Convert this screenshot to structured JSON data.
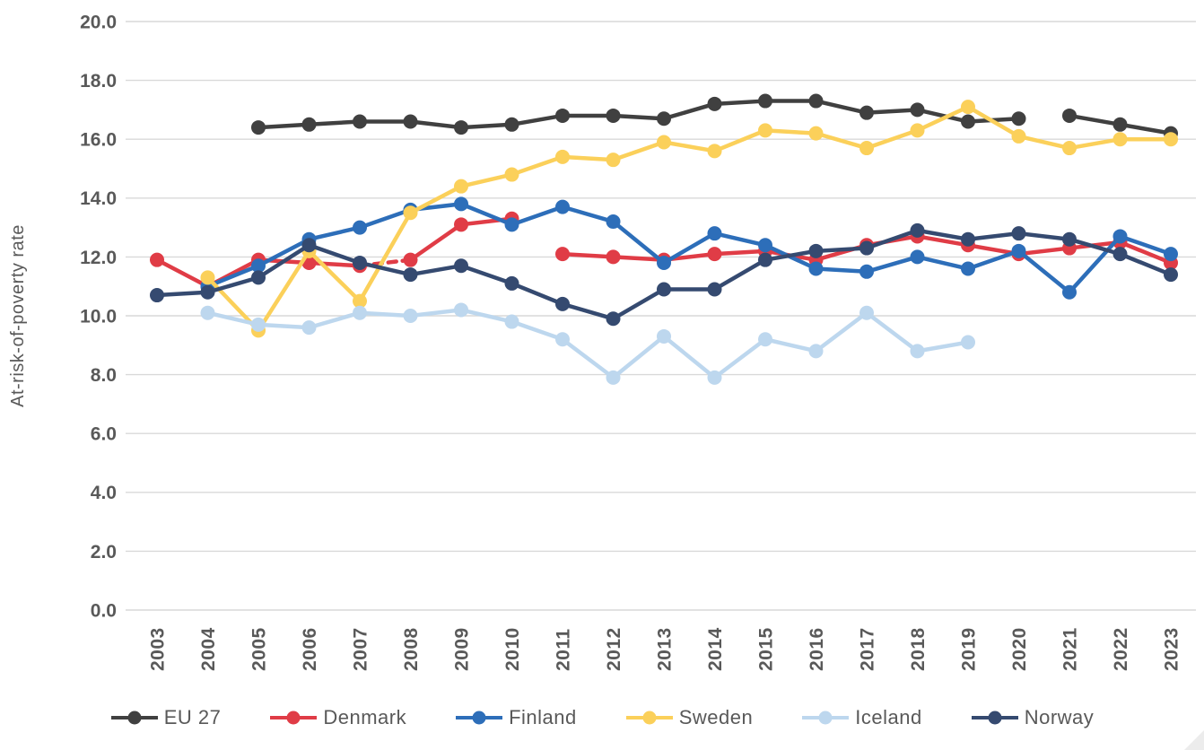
{
  "chart_data": {
    "type": "line",
    "title": "",
    "ylabel": "At-risk-of-poverty rate",
    "xlabel": "",
    "x": [
      2003,
      2004,
      2005,
      2006,
      2007,
      2008,
      2009,
      2010,
      2011,
      2012,
      2013,
      2014,
      2015,
      2016,
      2017,
      2018,
      2019,
      2020,
      2021,
      2022,
      2023
    ],
    "ylim": [
      0,
      20
    ],
    "ytick_step": 2,
    "grid": "horizontal",
    "legend_position": "bottom",
    "series": [
      {
        "name": "EU 27",
        "color": "#404040",
        "values": [
          null,
          null,
          16.4,
          16.5,
          16.6,
          16.6,
          16.4,
          16.5,
          16.8,
          16.8,
          16.7,
          17.2,
          17.3,
          17.3,
          16.9,
          17.0,
          16.6,
          16.7,
          16.8,
          16.5,
          16.2
        ],
        "gap_after": [
          2020
        ],
        "dashed_after": []
      },
      {
        "name": "Denmark",
        "color": "#e03c46",
        "values": [
          11.9,
          11.0,
          11.9,
          11.8,
          11.7,
          11.9,
          13.1,
          13.3,
          12.1,
          12.0,
          11.9,
          12.1,
          12.2,
          11.9,
          12.4,
          12.7,
          12.4,
          12.1,
          12.3,
          12.5,
          11.8
        ],
        "gap_after": [
          2010
        ],
        "dashed_after": [
          2007
        ]
      },
      {
        "name": "Finland",
        "color": "#2d6eb9",
        "values": [
          null,
          11.0,
          11.7,
          12.6,
          13.0,
          13.6,
          13.8,
          13.1,
          13.7,
          13.2,
          11.8,
          12.8,
          12.4,
          11.6,
          11.5,
          12.0,
          11.6,
          12.2,
          10.8,
          12.7,
          12.1
        ],
        "gap_after": [],
        "dashed_after": []
      },
      {
        "name": "Sweden",
        "color": "#fbd05a",
        "values": [
          null,
          11.3,
          9.5,
          12.2,
          10.5,
          13.5,
          14.4,
          14.8,
          15.4,
          15.3,
          15.9,
          15.6,
          16.3,
          16.2,
          15.7,
          16.3,
          17.1,
          16.1,
          15.7,
          16.0,
          16.0
        ],
        "gap_after": [],
        "dashed_after": []
      },
      {
        "name": "Iceland",
        "color": "#bdd7ee",
        "values": [
          null,
          10.1,
          9.7,
          9.6,
          10.1,
          10.0,
          10.2,
          9.8,
          9.2,
          7.9,
          9.3,
          7.9,
          9.2,
          8.8,
          10.1,
          8.8,
          9.1,
          null,
          null,
          null,
          null
        ],
        "gap_after": [],
        "dashed_after": []
      },
      {
        "name": "Norway",
        "color": "#354a70",
        "values": [
          10.7,
          10.8,
          11.3,
          12.4,
          11.8,
          11.4,
          11.7,
          11.1,
          10.4,
          9.9,
          10.9,
          10.9,
          11.9,
          12.2,
          12.3,
          12.9,
          12.6,
          12.8,
          12.6,
          12.1,
          11.4
        ],
        "gap_after": [],
        "dashed_after": []
      }
    ]
  },
  "y_ticks": [
    "0.0",
    "2.0",
    "4.0",
    "6.0",
    "8.0",
    "10.0",
    "12.0",
    "14.0",
    "16.0",
    "18.0",
    "20.0"
  ],
  "x_ticks": [
    "2003",
    "2004",
    "2005",
    "2006",
    "2007",
    "2008",
    "2009",
    "2010",
    "2011",
    "2012",
    "2013",
    "2014",
    "2015",
    "2016",
    "2017",
    "2018",
    "2019",
    "2020",
    "2021",
    "2022",
    "2023"
  ],
  "colors": {
    "grid": "#d9d9d9",
    "axis_text": "#595959",
    "background": "#ffffff"
  }
}
